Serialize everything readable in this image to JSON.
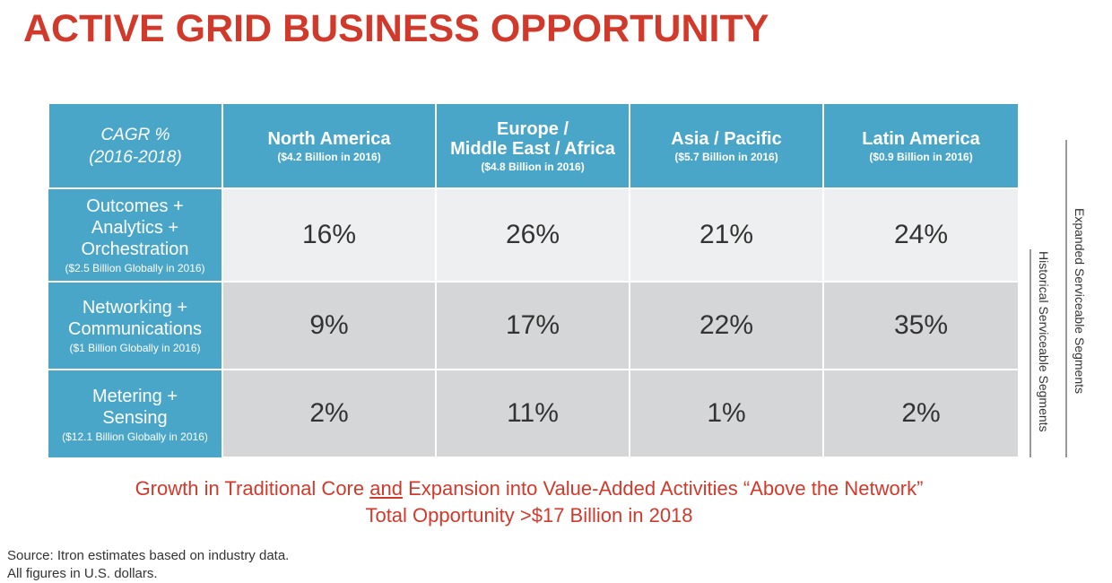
{
  "title": "ACTIVE GRID BUSINESS OPPORTUNITY",
  "table": {
    "corner": {
      "line1": "CAGR %",
      "line2": "(2016-2018)"
    },
    "regions": [
      {
        "name": "North America",
        "size": "($4.2 Billion in 2016)"
      },
      {
        "name_line1": "Europe /",
        "name_line2": "Middle East / Africa",
        "size": "($4.8 Billion in 2016)"
      },
      {
        "name": "Asia / Pacific",
        "size": "($5.7 Billion in 2016)"
      },
      {
        "name": "Latin America",
        "size": "($0.9 Billion in 2016)"
      }
    ],
    "segments": [
      {
        "line1": "Outcomes +",
        "line2": "Analytics +",
        "line3": "Orchestration",
        "size": "($2.5 Billion Globally in 2016)",
        "values": [
          "16%",
          "26%",
          "21%",
          "24%"
        ]
      },
      {
        "line1": "Networking +",
        "line2": "Communications",
        "size": "($1 Billion Globally in 2016)",
        "values": [
          "9%",
          "17%",
          "22%",
          "35%"
        ]
      },
      {
        "line1": "Metering +",
        "line2": "Sensing",
        "size": "($12.1 Billion Globally in 2016)",
        "values": [
          "2%",
          "11%",
          "1%",
          "2%"
        ]
      }
    ]
  },
  "side_labels": {
    "expanded": "Expanded Serviceable Segments",
    "historical": "Historical Serviceable Segments"
  },
  "tagline": {
    "part1": "Growth in Traditional Core ",
    "underlined": "and",
    "part2": " Expansion into Value-Added Activities “Above the Network”",
    "line2": "Total Opportunity >$17 Billion in 2018"
  },
  "source": {
    "line1": "Source: Itron estimates based on industry data.",
    "line2": "All figures in U.S. dollars."
  },
  "colors": {
    "accent_red": "#d13a2b",
    "header_blue": "#4aa6c9",
    "row_light": "#eeeff0",
    "row_dark": "#d5d6d8"
  }
}
